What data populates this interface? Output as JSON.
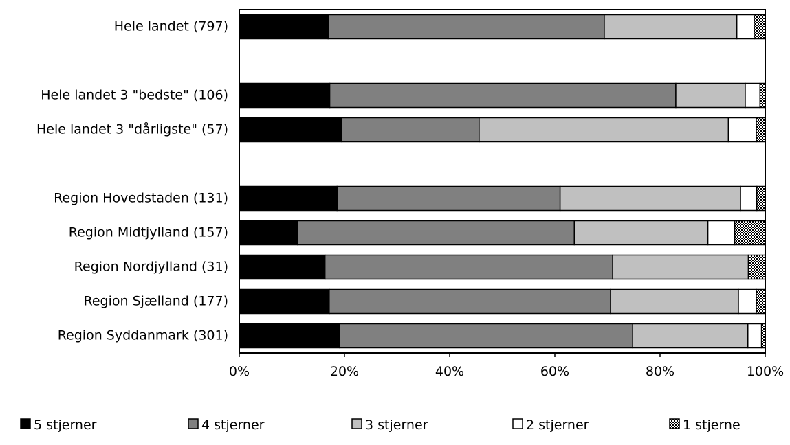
{
  "chart_data": {
    "type": "bar",
    "orientation": "horizontal",
    "stacked": true,
    "percent_stacked": true,
    "title": "",
    "xlabel": "",
    "ylabel": "",
    "xlim": [
      0,
      100
    ],
    "x_ticks": [
      "0%",
      "20%",
      "40%",
      "60%",
      "80%",
      "100%"
    ],
    "grid": false,
    "legend_position": "bottom",
    "categories": [
      "Hele landet  (797)",
      "",
      "Hele landet 3 \"bedste\" (106)",
      "Hele landet 3 \"dårligste\" (57)",
      "",
      "Region Hovedstaden (131)",
      "Region Midtjylland (157)",
      "Region Nordjylland (31)",
      "Region Sjælland (177)",
      "Region Syddanmark (301)"
    ],
    "series": [
      {
        "name": "5 stjerner",
        "color": "#000000",
        "pattern": "solid",
        "values": [
          16.9,
          null,
          17.2,
          19.5,
          null,
          18.6,
          11.1,
          16.3,
          17.1,
          19.1
        ]
      },
      {
        "name": "4 stjerner",
        "color": "#808080",
        "pattern": "solid",
        "values": [
          52.5,
          null,
          65.8,
          26.1,
          null,
          42.4,
          52.6,
          54.7,
          53.5,
          55.7
        ]
      },
      {
        "name": "3 stjerner",
        "color": "#c0c0c0",
        "pattern": "solid",
        "values": [
          25.2,
          null,
          13.2,
          47.4,
          null,
          34.3,
          25.4,
          25.8,
          24.3,
          21.9
        ]
      },
      {
        "name": "2 stjerner",
        "color": "#ffffff",
        "pattern": "solid",
        "values": [
          3.3,
          null,
          2.8,
          5.3,
          null,
          3.1,
          5.1,
          0,
          3.4,
          2.6
        ]
      },
      {
        "name": "1 stjerne",
        "color": "#ffffff",
        "pattern": "checker",
        "values": [
          2.1,
          null,
          1.0,
          1.7,
          null,
          1.6,
          5.8,
          3.2,
          1.7,
          0.7
        ]
      }
    ]
  }
}
